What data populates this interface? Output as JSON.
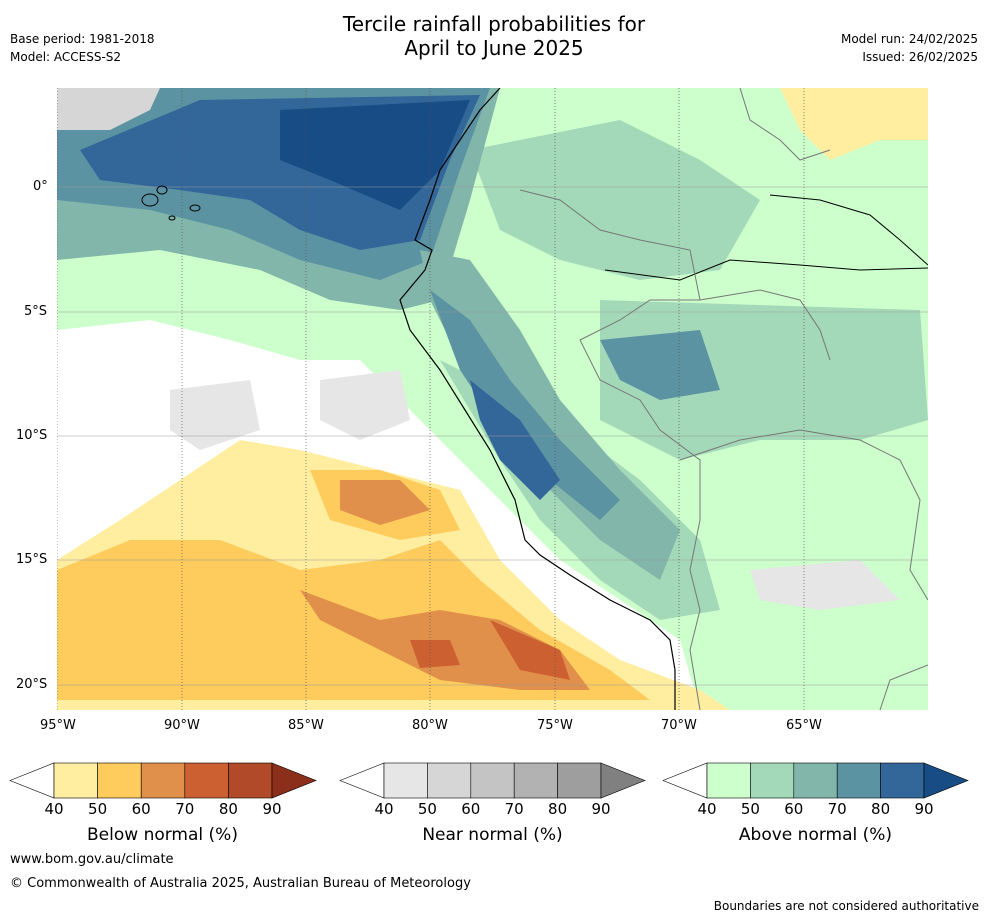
{
  "title_line1": "Tercile rainfall probabilities for",
  "title_line2": "April to June 2025",
  "meta_left": {
    "base_period": "Base period: 1981-2018",
    "model": "Model: ACCESS-S2"
  },
  "meta_right": {
    "model_run": "Model run: 24/02/2025",
    "issued": "Issued: 26/02/2025"
  },
  "lat_labels": [
    "0°",
    "5°S",
    "10°S",
    "15°S",
    "20°S"
  ],
  "lon_labels": [
    "95°W",
    "90°W",
    "85°W",
    "80°W",
    "75°W",
    "70°W",
    "65°W"
  ],
  "colorbars": [
    {
      "title": "Below normal (%)",
      "ticks": [
        "40",
        "50",
        "60",
        "70",
        "80",
        "90"
      ],
      "colors": [
        "#ffffff",
        "#ffeda0",
        "#fecc5c",
        "#e0904a",
        "#cc6030",
        "#b04a28",
        "#8b2e1a"
      ]
    },
    {
      "title": "Near normal (%)",
      "ticks": [
        "40",
        "50",
        "60",
        "70",
        "80",
        "90"
      ],
      "colors": [
        "#ffffff",
        "#e6e6e6",
        "#d6d6d6",
        "#c4c4c4",
        "#b2b2b2",
        "#9e9e9e",
        "#808080"
      ]
    },
    {
      "title": "Above normal (%)",
      "ticks": [
        "40",
        "50",
        "60",
        "70",
        "80",
        "90"
      ],
      "colors": [
        "#ffffff",
        "#ccffcc",
        "#a3d9b8",
        "#82b6aa",
        "#5b93a2",
        "#336699",
        "#174c84"
      ]
    }
  ],
  "footer": {
    "website": "www.bom.gov.au/climate",
    "copyright": "© Commonwealth of Australia 2025, Australian Bureau of Meteorology",
    "disclaimer": "Boundaries are not considered authoritative"
  }
}
